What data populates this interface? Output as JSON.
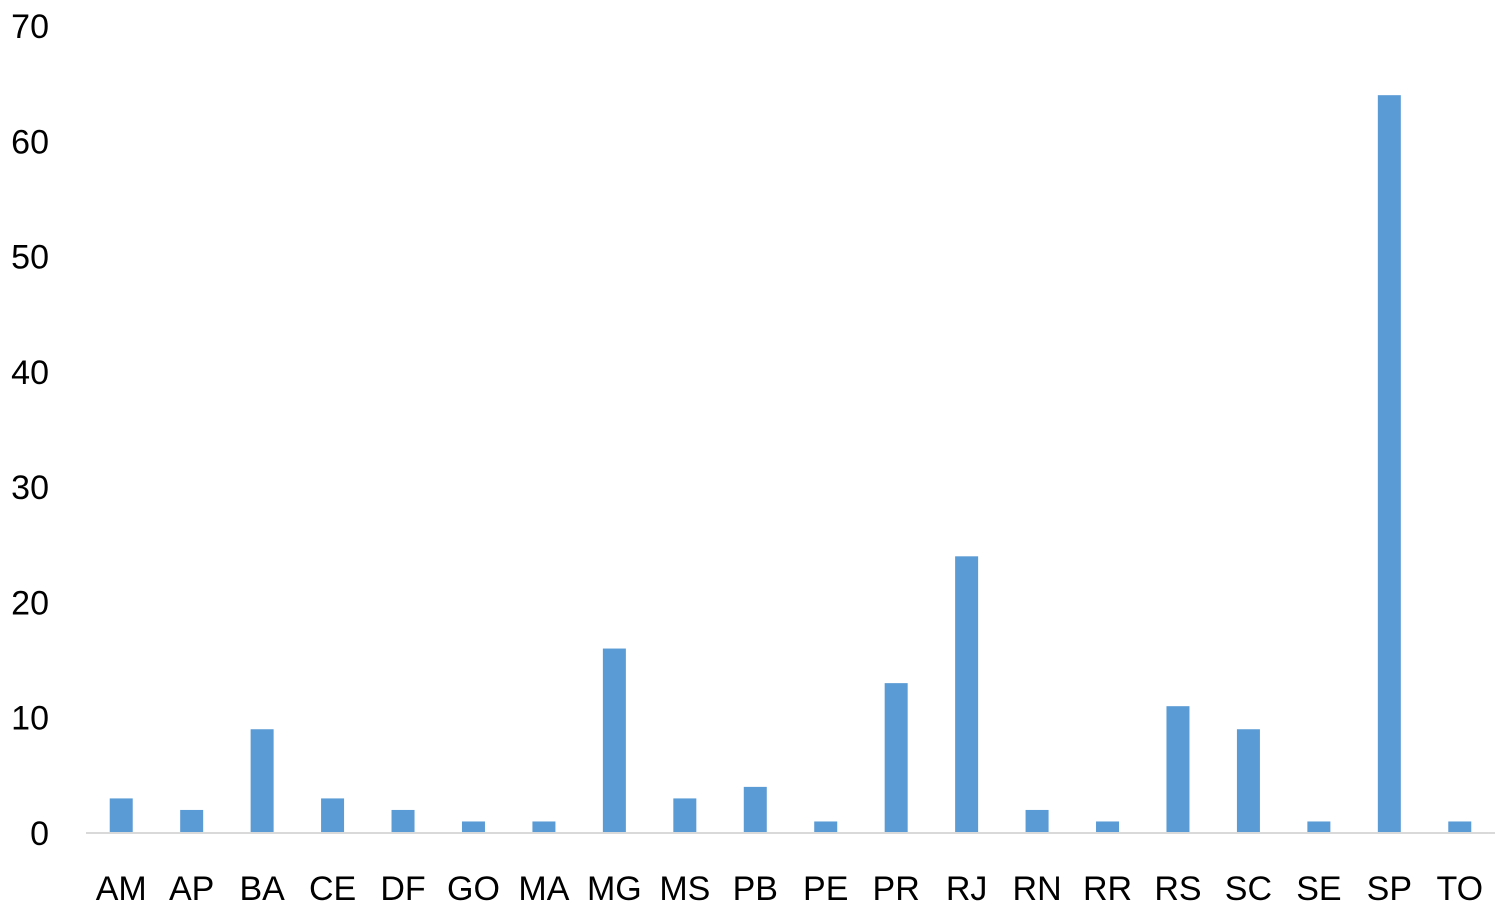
{
  "chart_data": {
    "type": "bar",
    "title": "",
    "xlabel": "",
    "ylabel": "",
    "categories": [
      "AM",
      "AP",
      "BA",
      "CE",
      "DF",
      "GO",
      "MA",
      "MG",
      "MS",
      "PB",
      "PE",
      "PR",
      "RJ",
      "RN",
      "RR",
      "RS",
      "SC",
      "SE",
      "SP",
      "TO"
    ],
    "values": [
      3,
      2,
      9,
      3,
      2,
      1,
      1,
      16,
      3,
      4,
      1,
      13,
      24,
      2,
      1,
      11,
      9,
      1,
      64,
      1
    ],
    "ylim": [
      0,
      70
    ],
    "yticks": [
      0,
      10,
      20,
      30,
      40,
      50,
      60,
      70
    ],
    "grid": false,
    "legend": "none",
    "colors": {
      "bar": "#5B9BD5",
      "axis": "#D9D9D9",
      "text": "#000000"
    }
  }
}
